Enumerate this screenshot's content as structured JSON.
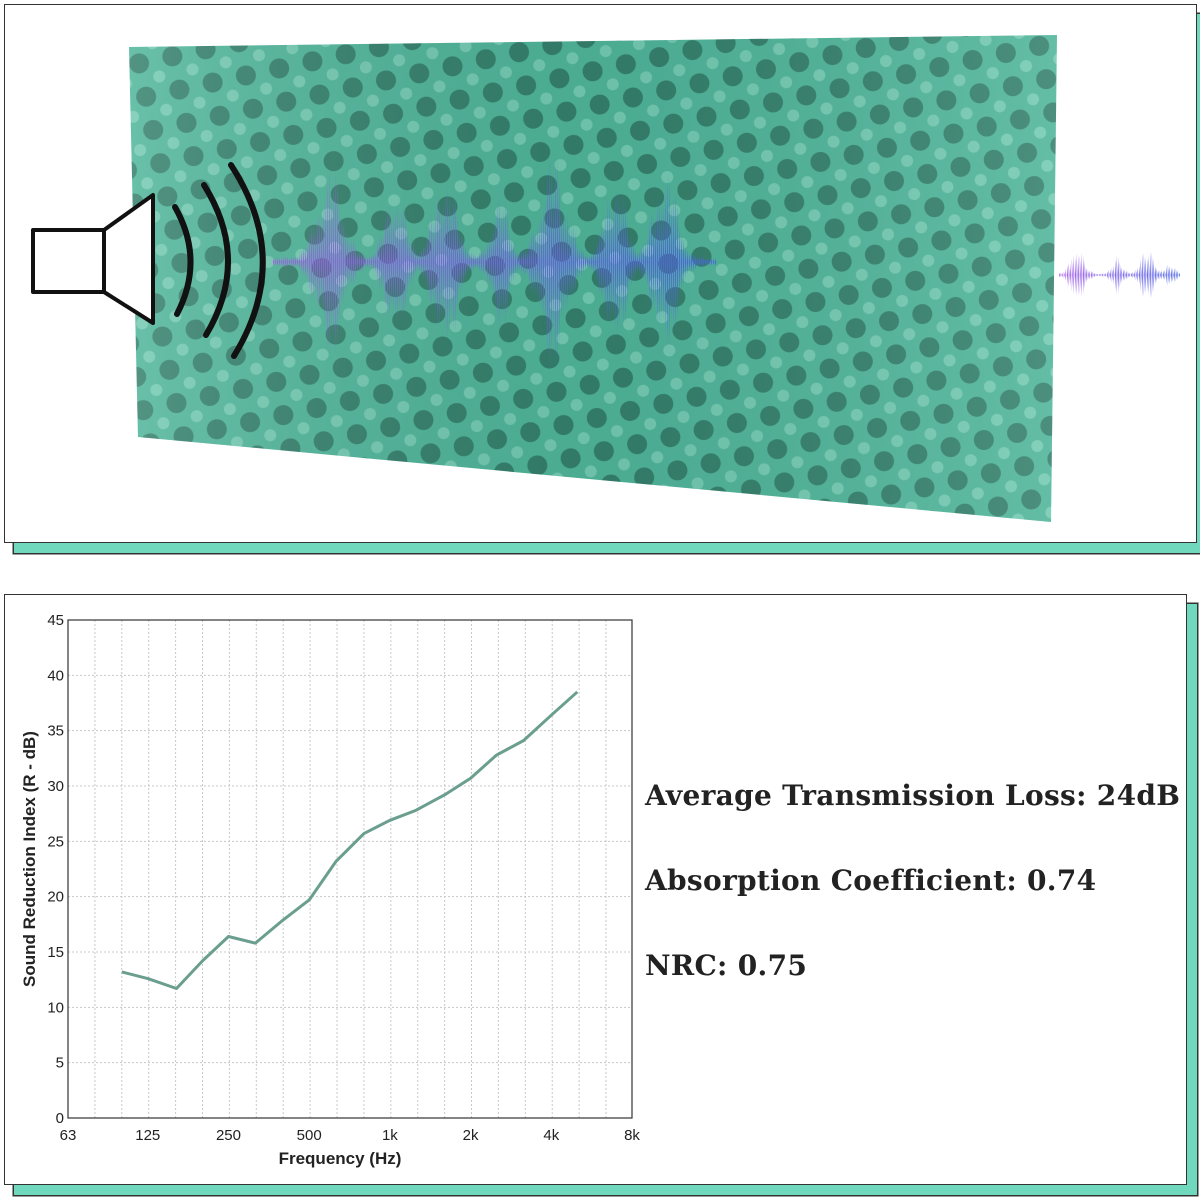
{
  "illustration": {
    "panel_color": "#4fb59a",
    "wave_start_color": "#a45ee8",
    "wave_end_color": "#4a63e6",
    "speaker_icon": "speaker-icon"
  },
  "metrics": {
    "average_transmission_loss": "Average Transmission Loss: 24dB",
    "absorption_coefficient": "Absorption Coefficient: 0.74",
    "nrc": "NRC: 0.75"
  },
  "accent_color": "#6fd8bd",
  "chart_data": {
    "type": "line",
    "xlabel": "Frequency (Hz)",
    "ylabel": "Sound Reduction Index (R - dB)",
    "x_scale": "log",
    "xlim": [
      63,
      8000
    ],
    "ylim": [
      0,
      45
    ],
    "x_ticks": [
      {
        "value": 63,
        "label": "63"
      },
      {
        "value": 125,
        "label": "125"
      },
      {
        "value": 250,
        "label": "250"
      },
      {
        "value": 500,
        "label": "500"
      },
      {
        "value": 1000,
        "label": "1k"
      },
      {
        "value": 2000,
        "label": "2k"
      },
      {
        "value": 4000,
        "label": "4k"
      },
      {
        "value": 8000,
        "label": "8k"
      }
    ],
    "y_ticks": [
      0,
      5,
      10,
      15,
      20,
      25,
      30,
      35,
      40,
      45
    ],
    "grid": true,
    "line_color": "#6a9e8e",
    "series": [
      {
        "x": [
          100,
          125,
          160,
          200,
          250,
          315,
          400,
          500,
          630,
          800,
          1000,
          1250,
          1600,
          2000,
          2500,
          3150,
          4000,
          5000
        ],
        "values": [
          13.2,
          12.6,
          11.7,
          14.2,
          16.4,
          15.8,
          17.9,
          19.7,
          23.2,
          25.7,
          26.9,
          27.8,
          29.2,
          30.7,
          32.8,
          34.1,
          36.4,
          38.5
        ]
      }
    ]
  }
}
